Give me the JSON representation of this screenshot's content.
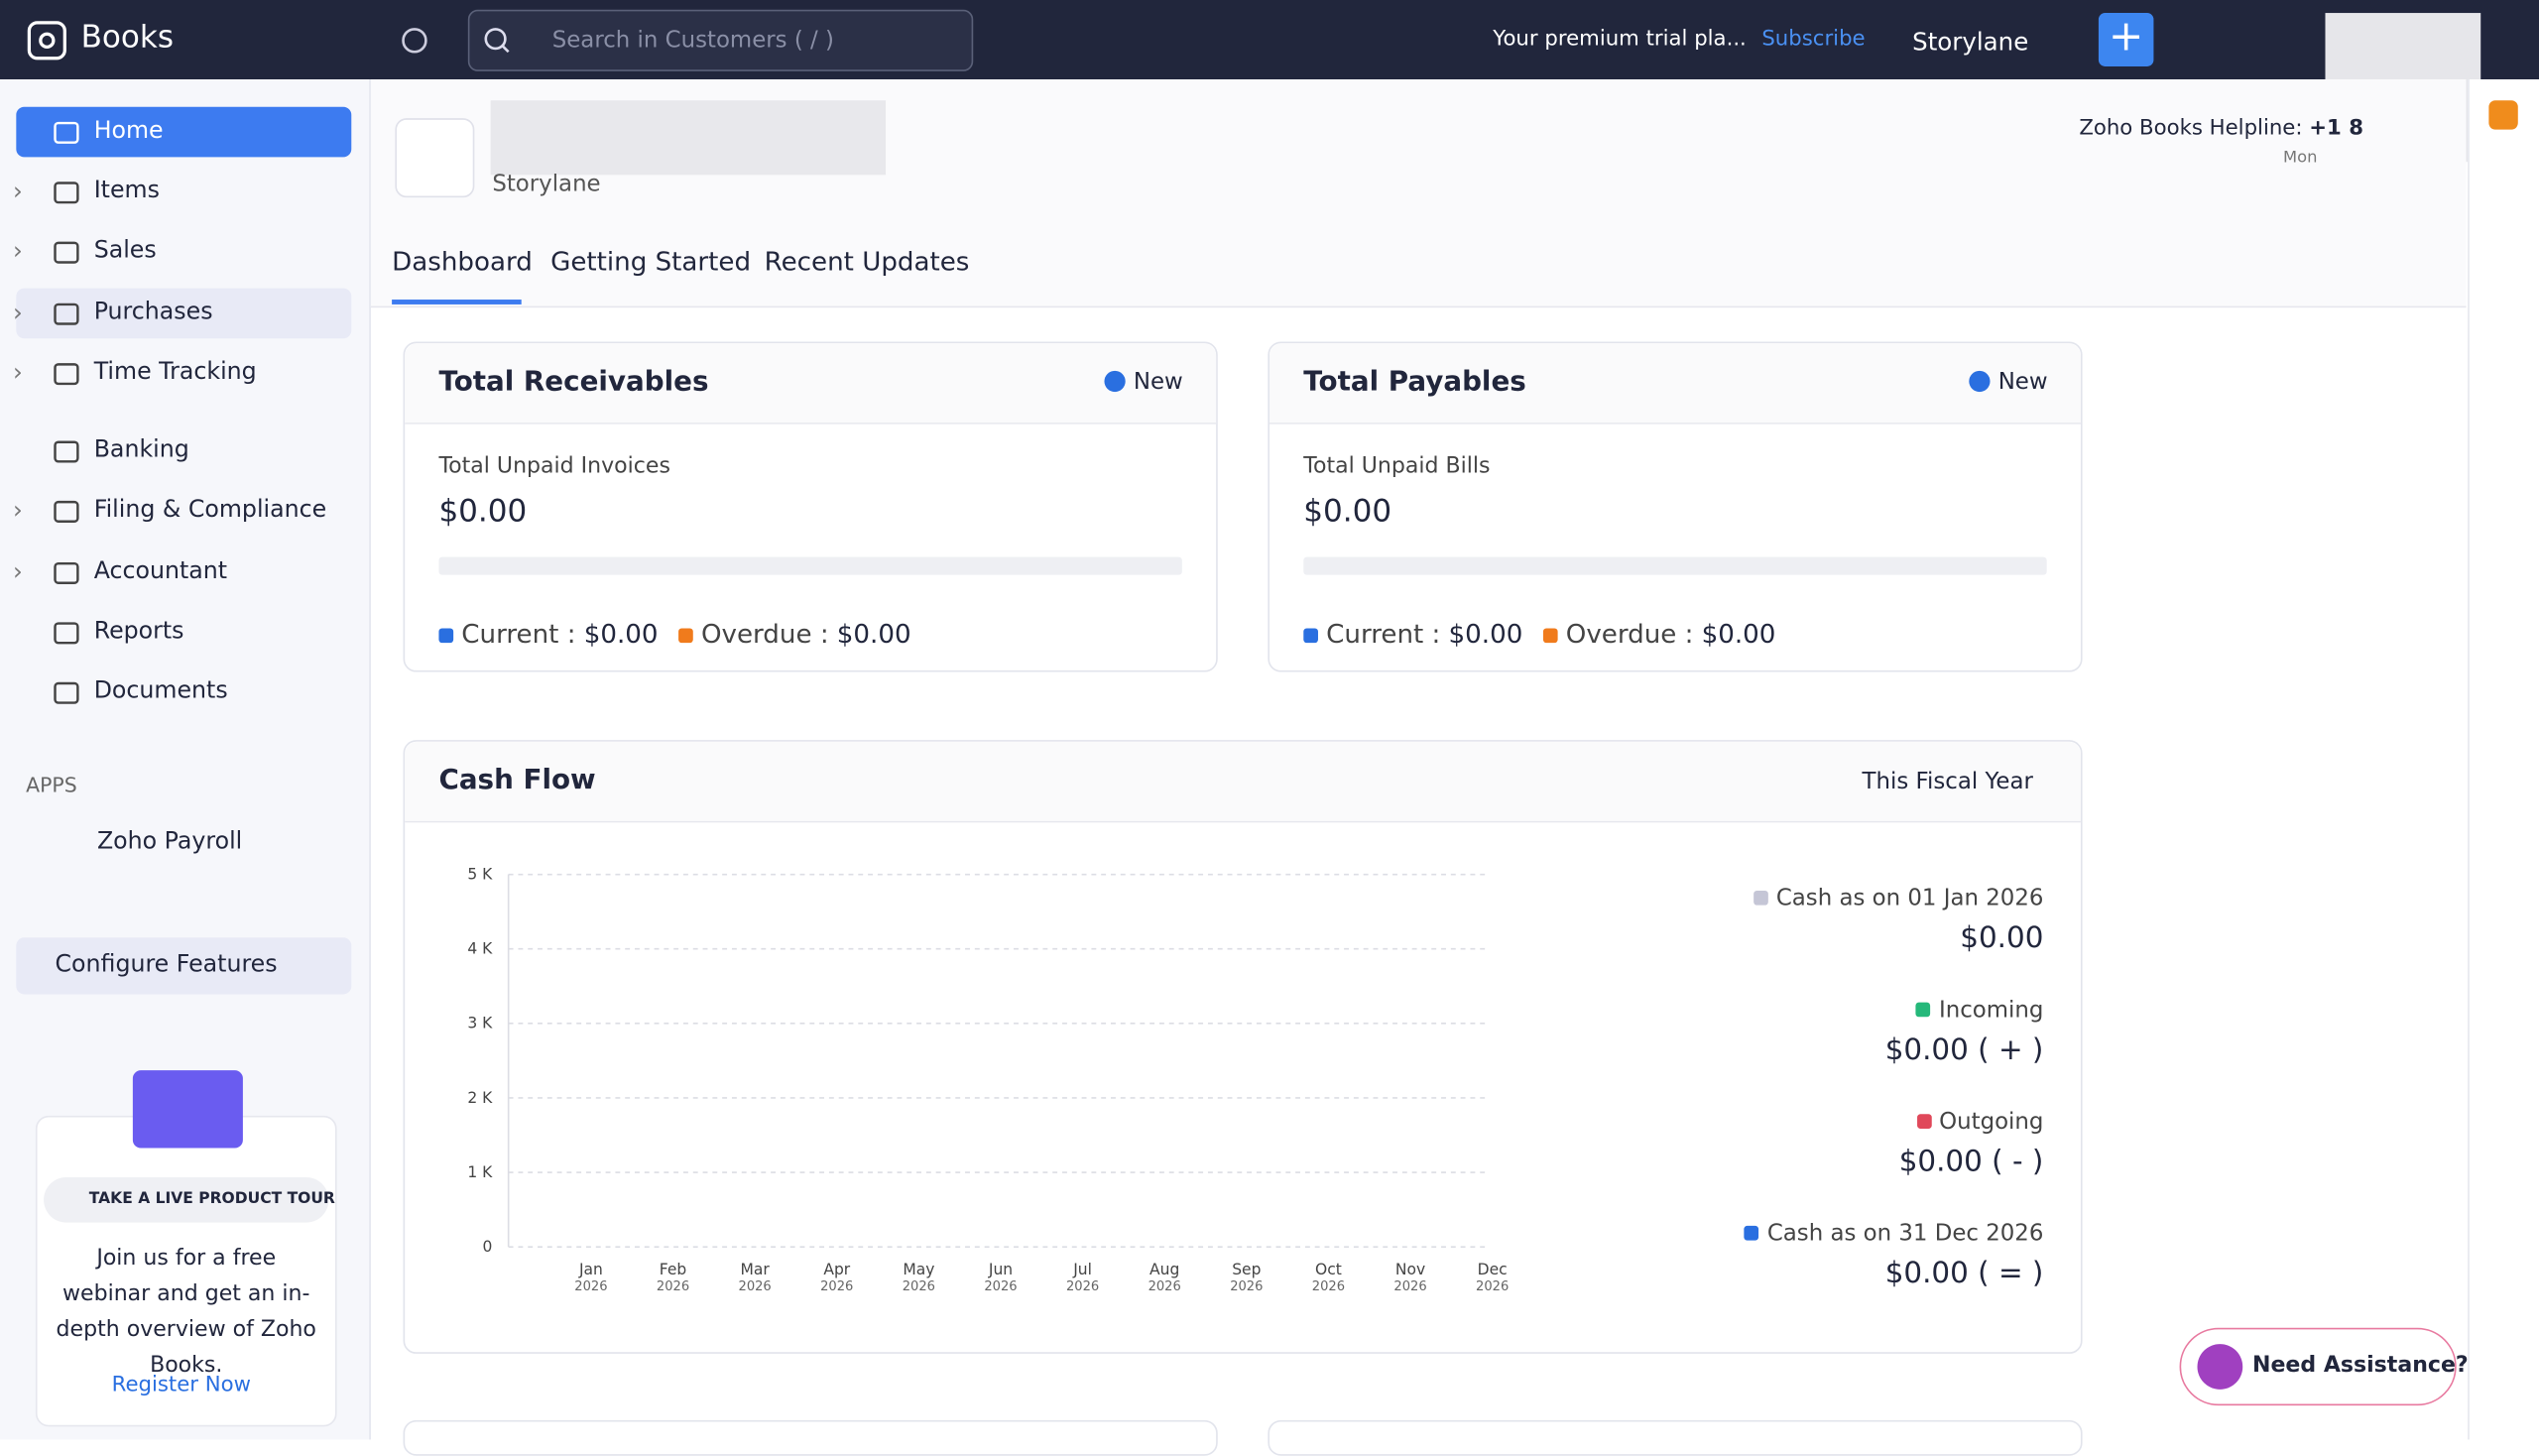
{
  "sidebar": {
    "brand": "Books",
    "nav": [
      "Home",
      "Items",
      "Sales",
      "Purchases",
      "Time Tracking",
      "Banking",
      "Filing & Compliance",
      "Accountant",
      "Reports",
      "Documents"
    ],
    "apps_heading": "APPS",
    "apps": [
      "Zoho Payroll"
    ],
    "configure": "Configure Features",
    "promo": {
      "badge": "TAKE A LIVE PRODUCT TOUR",
      "text": "Join us for a free webinar and get an in-depth overview of Zoho Books.",
      "link": "Register Now"
    }
  },
  "topbar": {
    "search_placeholder": "Search in Customers ( / )",
    "trial": "Your premium trial pla...",
    "subscribe": "Subscribe",
    "org": "Storylane"
  },
  "header": {
    "org_name": "Storylane",
    "helpline_label": "Zoho Books Helpline:",
    "helpline_number": "+1 8",
    "hours": "Mon"
  },
  "tabs": [
    "Dashboard",
    "Getting Started",
    "Recent Updates"
  ],
  "receivables": {
    "title": "Total Receivables",
    "new": "New",
    "subtitle": "Total Unpaid Invoices",
    "total": "$0.00",
    "current_label": "Current :",
    "current_value": "$0.00",
    "overdue_label": "Overdue :",
    "overdue_value": "$0.00"
  },
  "payables": {
    "title": "Total Payables",
    "new": "New",
    "subtitle": "Total Unpaid Bills",
    "total": "$0.00",
    "current_label": "Current :",
    "current_value": "$0.00",
    "overdue_label": "Overdue :",
    "overdue_value": "$0.00"
  },
  "cash_flow": {
    "title": "Cash Flow",
    "period": "This Fiscal Year",
    "ylim": [
      0,
      5000
    ],
    "yticks": [
      0,
      {
        "value": 1000,
        "label": "1 K"
      },
      {
        "value": 2000,
        "label": "2 K"
      },
      {
        "value": 3000,
        "label": "3 K"
      },
      {
        "value": 4000,
        "label": "4 K"
      },
      {
        "value": 5000,
        "label": "5 K"
      }
    ],
    "months": [
      "Jan",
      "Feb",
      "Mar",
      "Apr",
      "May",
      "Jun",
      "Jul",
      "Aug",
      "Sep",
      "Oct",
      "Nov",
      "Dec"
    ],
    "year": "2026",
    "legend": [
      {
        "label": "Cash as on 01 Jan 2026",
        "value": "$0.00",
        "color": "#c5c6d6"
      },
      {
        "label": "Incoming",
        "value": "$0.00 ( + )",
        "color": "#25b87a"
      },
      {
        "label": "Outgoing",
        "value": "$0.00 ( - )",
        "color": "#e0485a"
      },
      {
        "label": "Cash as on 31 Dec 2026",
        "value": "$0.00 ( = )",
        "color": "#2a6fe0"
      }
    ]
  },
  "assist": "Need Assistance?"
}
